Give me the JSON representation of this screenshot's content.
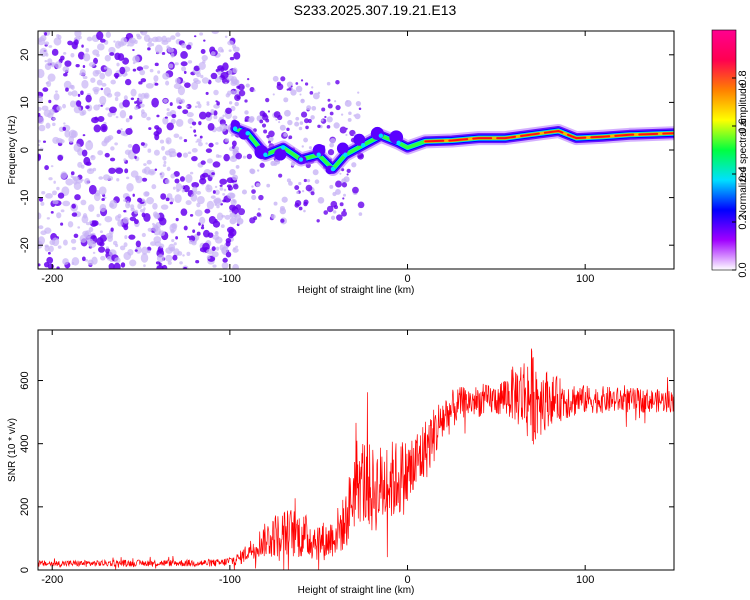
{
  "title": "S233.2025.307.19.21.E13",
  "colors": {
    "signal_line": "#ff0000",
    "axis": "#000000",
    "speckle_dark": "#6600ee",
    "speckle_light": "#c8b4f5"
  },
  "chart_data": [
    {
      "type": "heatmap",
      "title": "S233.2025.307.19.21.E13",
      "xlabel": "Height of straight line (km)",
      "ylabel": "Frequency (Hz)",
      "xlim": [
        -208,
        150
      ],
      "ylim": [
        -25,
        25
      ],
      "xticks": [
        -200,
        -100,
        0,
        100
      ],
      "yticks": [
        -20,
        -10,
        0,
        10,
        20
      ],
      "xtick_labels": [
        "-200",
        "-100",
        "0",
        "100"
      ],
      "ytick_labels": [
        "-20",
        "-10",
        "0",
        "10",
        "20"
      ],
      "noise_region_x": [
        -208,
        -95
      ],
      "signal_track": [
        {
          "x": -97,
          "y": 4.5
        },
        {
          "x": -90,
          "y": 3.5
        },
        {
          "x": -80,
          "y": -1.0
        },
        {
          "x": -70,
          "y": 0.5
        },
        {
          "x": -60,
          "y": -2.0
        },
        {
          "x": -50,
          "y": -1.0
        },
        {
          "x": -42,
          "y": -4.0
        },
        {
          "x": -35,
          "y": -1.0
        },
        {
          "x": -25,
          "y": 1.0
        },
        {
          "x": -15,
          "y": 3.0
        },
        {
          "x": -5,
          "y": 1.5
        },
        {
          "x": 0,
          "y": 0.5
        },
        {
          "x": 10,
          "y": 1.8
        },
        {
          "x": 25,
          "y": 2.0
        },
        {
          "x": 40,
          "y": 2.5
        },
        {
          "x": 55,
          "y": 2.5
        },
        {
          "x": 65,
          "y": 3.0
        },
        {
          "x": 75,
          "y": 3.5
        },
        {
          "x": 85,
          "y": 4.0
        },
        {
          "x": 95,
          "y": 2.5
        },
        {
          "x": 110,
          "y": 2.8
        },
        {
          "x": 125,
          "y": 3.2
        },
        {
          "x": 150,
          "y": 3.5
        }
      ],
      "colorbar": {
        "label": "Normalized spectral amplitude",
        "range": [
          0.0,
          1.0
        ],
        "ticks": [
          0.0,
          0.2,
          0.4,
          0.6,
          0.8
        ],
        "tick_labels": [
          "0.0",
          "0.2",
          "0.4",
          "0.6",
          "0.8"
        ],
        "stops": [
          "#ffffff",
          "#a000ff",
          "#0000ff",
          "#00e0ff",
          "#00ff40",
          "#ffff00",
          "#ff8000",
          "#ff0050",
          "#ff0090"
        ]
      }
    },
    {
      "type": "line",
      "xlabel": "Height of straight line (km)",
      "ylabel": "SNR (10 * v/v)",
      "xlim": [
        -208,
        150
      ],
      "ylim": [
        0,
        760
      ],
      "xticks": [
        -200,
        -100,
        0,
        100
      ],
      "yticks": [
        0,
        200,
        400,
        600
      ],
      "xtick_labels": [
        "-200",
        "-100",
        "0",
        "100"
      ],
      "ytick_labels": [
        "0",
        "200",
        "400",
        "600"
      ],
      "series": [
        {
          "name": "SNR",
          "color": "#ff0000",
          "envelope": [
            {
              "x": -208,
              "mean": 20,
              "amp": 10
            },
            {
              "x": -150,
              "mean": 22,
              "amp": 10
            },
            {
              "x": -105,
              "mean": 22,
              "amp": 12
            },
            {
              "x": -95,
              "mean": 35,
              "amp": 20
            },
            {
              "x": -85,
              "mean": 80,
              "amp": 40
            },
            {
              "x": -75,
              "mean": 110,
              "amp": 70
            },
            {
              "x": -65,
              "mean": 120,
              "amp": 80
            },
            {
              "x": -55,
              "mean": 100,
              "amp": 70
            },
            {
              "x": -45,
              "mean": 90,
              "amp": 60
            },
            {
              "x": -35,
              "mean": 150,
              "amp": 90
            },
            {
              "x": -28,
              "mean": 300,
              "amp": 150
            },
            {
              "x": -20,
              "mean": 250,
              "amp": 140
            },
            {
              "x": -10,
              "mean": 280,
              "amp": 130
            },
            {
              "x": 0,
              "mean": 300,
              "amp": 120
            },
            {
              "x": 10,
              "mean": 380,
              "amp": 100
            },
            {
              "x": 20,
              "mean": 480,
              "amp": 80
            },
            {
              "x": 30,
              "mean": 530,
              "amp": 50
            },
            {
              "x": 50,
              "mean": 540,
              "amp": 50
            },
            {
              "x": 60,
              "mean": 560,
              "amp": 90
            },
            {
              "x": 70,
              "mean": 550,
              "amp": 160
            },
            {
              "x": 80,
              "mean": 540,
              "amp": 80
            },
            {
              "x": 100,
              "mean": 540,
              "amp": 45
            },
            {
              "x": 150,
              "mean": 535,
              "amp": 35
            }
          ]
        }
      ]
    }
  ]
}
